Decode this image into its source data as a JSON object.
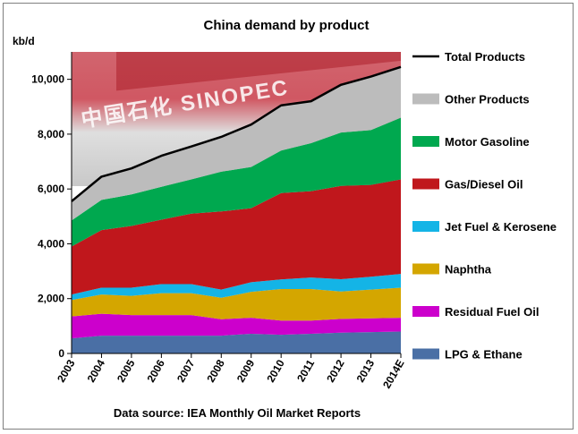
{
  "chart_data": {
    "type": "area",
    "title": "China demand by product",
    "ylabel": "kb/d",
    "source": "Data source: IEA Monthly Oil Market Reports",
    "ylim": [
      0,
      11000
    ],
    "yticks": [
      "0",
      "2,000",
      "4,000",
      "6,000",
      "8,000",
      "10,000"
    ],
    "ytick_values": [
      0,
      2000,
      4000,
      6000,
      8000,
      10000
    ],
    "categories": [
      "2003",
      "2004",
      "2005",
      "2006",
      "2007",
      "2008",
      "2009",
      "2010",
      "2011",
      "2012",
      "2013",
      "2014E"
    ],
    "background_photo_text": "中国石化 SINOPEC",
    "legend_position": "right",
    "series": [
      {
        "name": "LPG & Ethane",
        "color": "#4a6fa5",
        "values": [
          550,
          650,
          650,
          650,
          650,
          650,
          720,
          680,
          720,
          760,
          780,
          800
        ]
      },
      {
        "name": "Residual Fuel Oil",
        "color": "#cc00cc",
        "values": [
          800,
          800,
          750,
          750,
          750,
          600,
          580,
          520,
          480,
          500,
          500,
          500
        ]
      },
      {
        "name": "Naphtha",
        "color": "#d4a600",
        "values": [
          600,
          700,
          700,
          800,
          800,
          780,
          950,
          1150,
          1150,
          1000,
          1050,
          1100
        ]
      },
      {
        "name": "Jet Fuel & Kerosene",
        "color": "#14b4e6",
        "values": [
          200,
          250,
          300,
          330,
          330,
          300,
          350,
          350,
          420,
          450,
          470,
          500
        ]
      },
      {
        "name": "Gas/Diesel Oil",
        "color": "#c0171c",
        "values": [
          1750,
          2100,
          2250,
          2350,
          2570,
          2850,
          2700,
          3150,
          3150,
          3400,
          3350,
          3450
        ]
      },
      {
        "name": "Motor Gasoline",
        "color": "#00a84f",
        "values": [
          950,
          1100,
          1150,
          1200,
          1250,
          1450,
          1500,
          1550,
          1750,
          1950,
          2000,
          2250
        ]
      },
      {
        "name": "Other Products",
        "color": "#bcbcbc",
        "values": [
          700,
          850,
          950,
          1130,
          1200,
          1270,
          1550,
          1650,
          1530,
          1740,
          1950,
          1850
        ]
      }
    ],
    "total": {
      "name": "Total Products",
      "color": "#000000",
      "values": [
        5550,
        6450,
        6750,
        7210,
        7550,
        7900,
        8350,
        9050,
        9200,
        9800,
        10100,
        10450
      ]
    }
  }
}
